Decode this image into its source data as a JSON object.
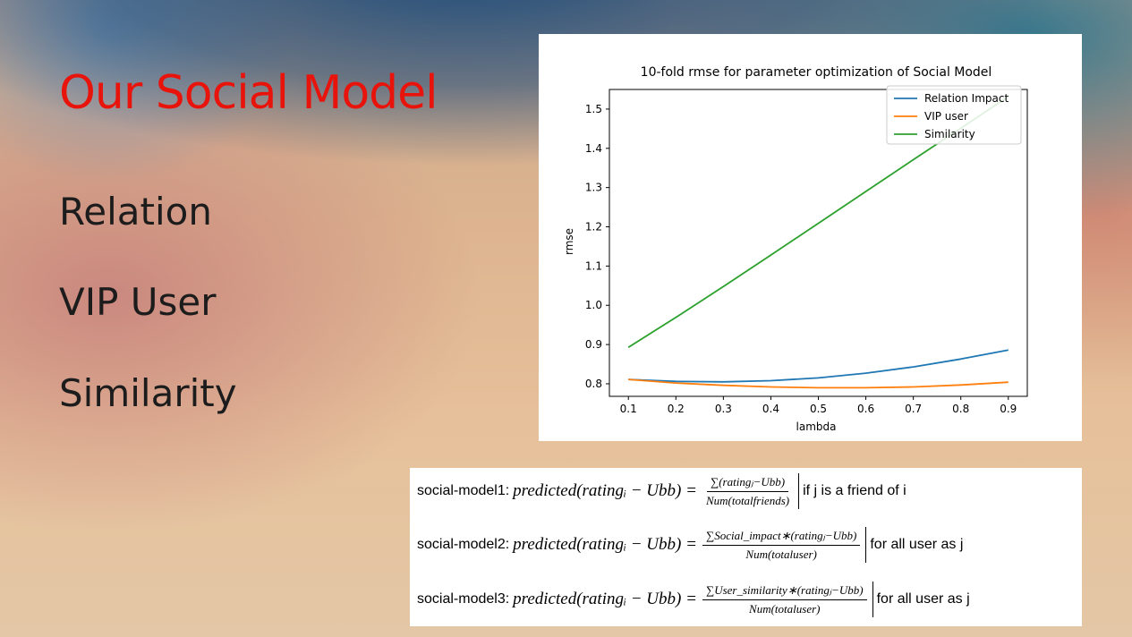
{
  "slide": {
    "title": "Our Social Model",
    "bullets": [
      "Relation",
      "VIP User",
      "Similarity"
    ]
  },
  "colors": {
    "title": "#e8140c",
    "relation_impact": "#1f77b4",
    "vip_user": "#ff7f0e",
    "similarity": "#2ca02c"
  },
  "chart_data": {
    "type": "line",
    "title": "10-fold rmse for parameter optimization of Social Model",
    "xlabel": "lambda",
    "ylabel": "rmse",
    "x": [
      0.1,
      0.2,
      0.3,
      0.4,
      0.5,
      0.6,
      0.7,
      0.8,
      0.9
    ],
    "xticks": [
      "0.1",
      "0.2",
      "0.3",
      "0.4",
      "0.5",
      "0.6",
      "0.7",
      "0.8",
      "0.9"
    ],
    "yticks": [
      "0.8",
      "0.9",
      "1.0",
      "1.1",
      "1.2",
      "1.3",
      "1.4",
      "1.5"
    ],
    "xlim": [
      0.06,
      0.94
    ],
    "ylim": [
      0.768,
      1.55
    ],
    "legend_position": "top-right",
    "grid": false,
    "series": [
      {
        "name": "Relation Impact",
        "color": "#1f77b4",
        "values": [
          0.811,
          0.806,
          0.805,
          0.808,
          0.815,
          0.827,
          0.843,
          0.863,
          0.886
        ]
      },
      {
        "name": "VIP user",
        "color": "#ff7f0e",
        "values": [
          0.811,
          0.802,
          0.796,
          0.792,
          0.79,
          0.79,
          0.792,
          0.797,
          0.804
        ]
      },
      {
        "name": "Similarity",
        "color": "#2ca02c",
        "values": [
          0.893,
          0.969,
          1.048,
          1.128,
          1.209,
          1.29,
          1.371,
          1.451,
          1.532
        ]
      }
    ]
  },
  "formulas": [
    {
      "name": "social-model1:",
      "lhs": "predicted(ratingᵢ − Ubb) =",
      "numerator": "∑(ratingⱼ−Ubb)",
      "denominator": "Num(totalfriends)",
      "condition": "if j is a friend of i"
    },
    {
      "name": "social-model2:",
      "lhs": "predicted(ratingᵢ − Ubb) =",
      "numerator": "∑Social_impact∗(ratingⱼ−Ubb)",
      "denominator": "Num(totaluser)",
      "condition": "for all user as j"
    },
    {
      "name": "social-model3:",
      "lhs": "predicted(ratingᵢ − Ubb) =",
      "numerator": "∑User_similarity∗(ratingⱼ−Ubb)",
      "denominator": "Num(totaluser)",
      "condition": "for all user as j"
    }
  ]
}
